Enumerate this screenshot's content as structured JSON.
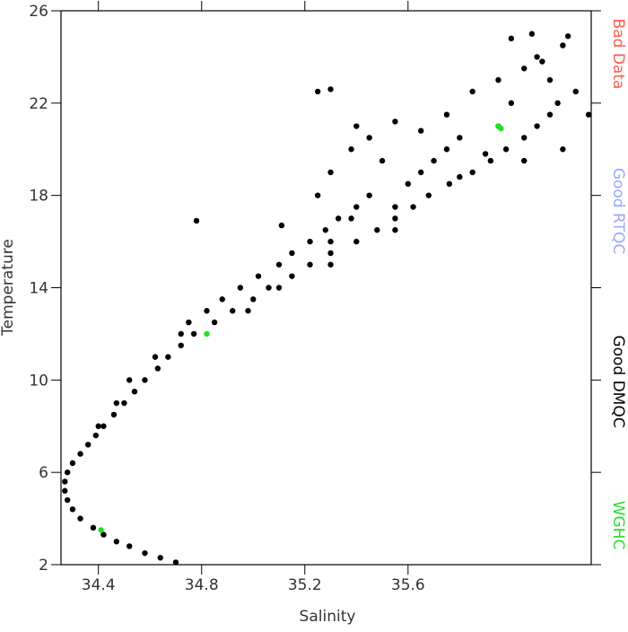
{
  "chart_data": {
    "type": "scatter",
    "x_label": "Salinity",
    "y_label": "Temperature",
    "xlim": [
      34.255,
      36.31
    ],
    "ylim": [
      2,
      26
    ],
    "xticks": [
      34.4,
      34.8,
      35.2,
      35.6
    ],
    "yticks": [
      2,
      6,
      10,
      14,
      18,
      22,
      26
    ],
    "series": [
      {
        "name": "Bad Data",
        "color": "#ff5a4a",
        "x": [],
        "y": []
      },
      {
        "name": "Good RTQC",
        "color": "#9aa6ff",
        "x": [],
        "y": []
      },
      {
        "name": "Good DMQC",
        "color": "#000000",
        "x": [
          34.7,
          34.64,
          34.58,
          34.52,
          34.47,
          34.42,
          34.38,
          34.33,
          34.3,
          34.28,
          34.27,
          34.27,
          34.28,
          34.3,
          34.33,
          34.36,
          34.39,
          34.42,
          34.46,
          34.5,
          34.54,
          34.58,
          34.63,
          34.67,
          34.72,
          34.77,
          34.85,
          34.92,
          35.0,
          35.06,
          35.15,
          35.22,
          35.3,
          35.4,
          35.48,
          35.55,
          35.62,
          35.68,
          35.76,
          35.85,
          35.92,
          35.98,
          36.05,
          36.1,
          36.15,
          36.18,
          34.75,
          34.82,
          34.88,
          34.95,
          35.02,
          35.1,
          35.15,
          35.22,
          35.28,
          35.33,
          35.4,
          35.45,
          35.38,
          35.3,
          35.3,
          35.55,
          35.55,
          35.6,
          35.65,
          35.7,
          35.75,
          35.8,
          35.25,
          35.3,
          35.38,
          35.4,
          35.55,
          35.65,
          35.5,
          35.45,
          35.3,
          35.25,
          35.75,
          35.85,
          35.95,
          36.05,
          36.1,
          36.0,
          36.08,
          36.2,
          36.15,
          36.25,
          36.3,
          36.2,
          36.05,
          36.22,
          34.78,
          35.11,
          34.62,
          34.52,
          34.47,
          34.72,
          34.4,
          35.95,
          36.0,
          36.12,
          34.98,
          35.1,
          35.9,
          35.8
        ],
        "y": [
          2.1,
          2.3,
          2.5,
          2.8,
          3.0,
          3.3,
          3.6,
          4.0,
          4.4,
          4.8,
          5.2,
          5.6,
          6.0,
          6.4,
          6.8,
          7.2,
          7.6,
          8.0,
          8.5,
          9.0,
          9.5,
          10.0,
          10.5,
          11.0,
          11.5,
          12.0,
          12.5,
          13.0,
          13.5,
          14.0,
          14.5,
          15.0,
          15.5,
          16.0,
          16.5,
          17.0,
          17.5,
          18.0,
          18.5,
          19.0,
          19.5,
          20.0,
          20.5,
          21.0,
          21.5,
          22.0,
          12.5,
          13.0,
          13.5,
          14.0,
          14.5,
          15.0,
          15.5,
          16.0,
          16.5,
          17.0,
          17.5,
          18.0,
          17.0,
          16.0,
          15.0,
          16.5,
          17.5,
          18.5,
          19.0,
          19.5,
          20.0,
          20.5,
          18.0,
          19.0,
          20.0,
          21.0,
          21.2,
          20.8,
          19.5,
          20.5,
          22.6,
          22.5,
          21.5,
          22.5,
          23.0,
          23.5,
          24.0,
          24.8,
          25.0,
          24.5,
          23.0,
          22.5,
          21.5,
          20.0,
          19.5,
          24.9,
          16.9,
          16.7,
          11.0,
          10.0,
          9.0,
          12.0,
          8.0,
          21.0,
          22.0,
          23.8,
          13.0,
          14.0,
          19.8,
          18.8
        ]
      },
      {
        "name": "WGHC",
        "color": "#22e022",
        "x": [
          35.95,
          35.96,
          34.41,
          34.82
        ],
        "y": [
          21.0,
          20.9,
          3.5,
          12.0
        ]
      }
    ]
  }
}
